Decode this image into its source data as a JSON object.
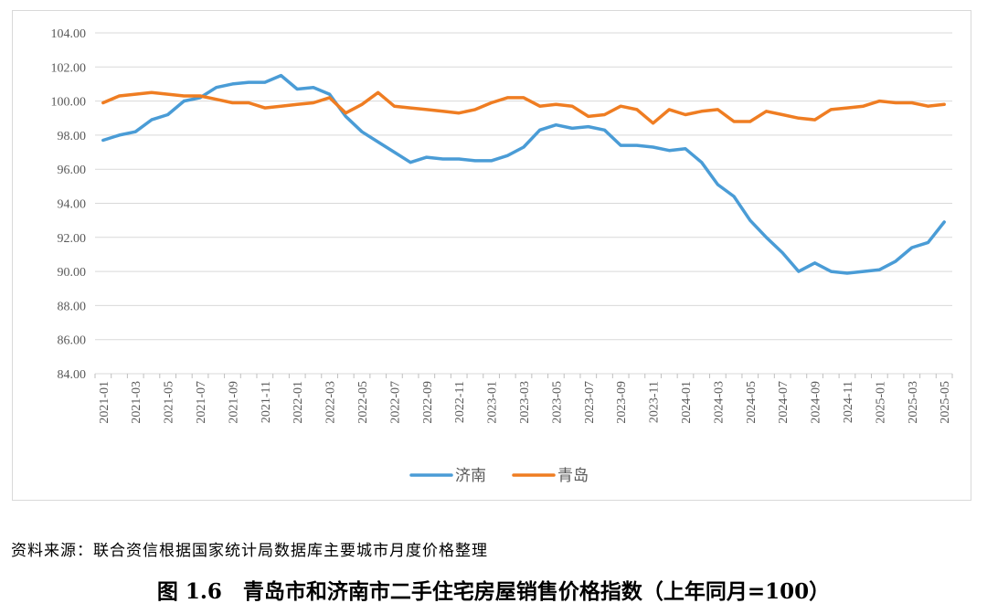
{
  "source_note": "资料来源：联合资信根据国家统计局数据库主要城市月度价格整理",
  "caption": "图 1.6　青岛市和济南市二手住宅房屋销售价格指数（上年同月=100）",
  "chart_data": {
    "type": "line",
    "ylim": [
      84,
      104
    ],
    "yticks": [
      "84.00",
      "86.00",
      "88.00",
      "90.00",
      "92.00",
      "94.00",
      "96.00",
      "98.00",
      "100.00",
      "102.00",
      "104.00"
    ],
    "grid": true,
    "legend_position": "bottom",
    "xtick_labels": [
      "2021-01",
      "2021-03",
      "2021-05",
      "2021-07",
      "2021-09",
      "2021-11",
      "2022-01",
      "2022-03",
      "2022-05",
      "2022-07",
      "2022-09",
      "2022-11",
      "2023-01",
      "2023-03",
      "2023-05",
      "2023-07",
      "2023-09",
      "2023-11",
      "2024-01",
      "2024-03",
      "2024-05",
      "2024-07",
      "2024-09",
      "2024-11",
      "2025-01",
      "2025-03",
      "2025-05"
    ],
    "x": [
      "2021-01",
      "2021-02",
      "2021-03",
      "2021-04",
      "2021-05",
      "2021-06",
      "2021-07",
      "2021-08",
      "2021-09",
      "2021-10",
      "2021-11",
      "2021-12",
      "2022-01",
      "2022-02",
      "2022-03",
      "2022-04",
      "2022-05",
      "2022-06",
      "2022-07",
      "2022-08",
      "2022-09",
      "2022-10",
      "2022-11",
      "2022-12",
      "2023-01",
      "2023-02",
      "2023-03",
      "2023-04",
      "2023-05",
      "2023-06",
      "2023-07",
      "2023-08",
      "2023-09",
      "2023-10",
      "2023-11",
      "2023-12",
      "2024-01",
      "2024-02",
      "2024-03",
      "2024-04",
      "2024-05",
      "2024-06",
      "2024-07",
      "2024-08",
      "2024-09",
      "2024-10",
      "2024-11",
      "2024-12",
      "2025-01",
      "2025-02",
      "2025-03",
      "2025-04",
      "2025-05"
    ],
    "series": [
      {
        "name": "济南",
        "color": "#4a9cd6",
        "values": [
          97.7,
          98.0,
          98.2,
          98.9,
          99.2,
          100.0,
          100.2,
          100.8,
          101.0,
          101.1,
          101.1,
          101.5,
          100.7,
          100.8,
          100.4,
          99.1,
          98.2,
          97.6,
          97.0,
          96.4,
          96.7,
          96.6,
          96.6,
          96.5,
          96.5,
          96.8,
          97.3,
          98.3,
          98.6,
          98.4,
          98.5,
          98.3,
          97.4,
          97.4,
          97.3,
          97.1,
          97.2,
          96.4,
          95.1,
          94.4,
          93.0,
          92.0,
          91.1,
          90.0,
          90.5,
          90.0,
          89.9,
          90.0,
          90.1,
          90.6,
          91.4,
          91.7,
          92.9
        ]
      },
      {
        "name": "青岛",
        "color": "#ef7d22",
        "values": [
          99.9,
          100.3,
          100.4,
          100.5,
          100.4,
          100.3,
          100.3,
          100.1,
          99.9,
          99.9,
          99.6,
          99.7,
          99.8,
          99.9,
          100.2,
          99.3,
          99.8,
          100.5,
          99.7,
          99.6,
          99.5,
          99.4,
          99.3,
          99.5,
          99.9,
          100.2,
          100.2,
          99.7,
          99.8,
          99.7,
          99.1,
          99.2,
          99.7,
          99.5,
          98.7,
          99.5,
          99.2,
          99.4,
          99.5,
          98.8,
          98.8,
          99.4,
          99.2,
          99.0,
          98.9,
          99.5,
          99.6,
          99.7,
          100.0,
          99.9,
          99.9,
          99.7,
          99.8
        ]
      }
    ]
  }
}
